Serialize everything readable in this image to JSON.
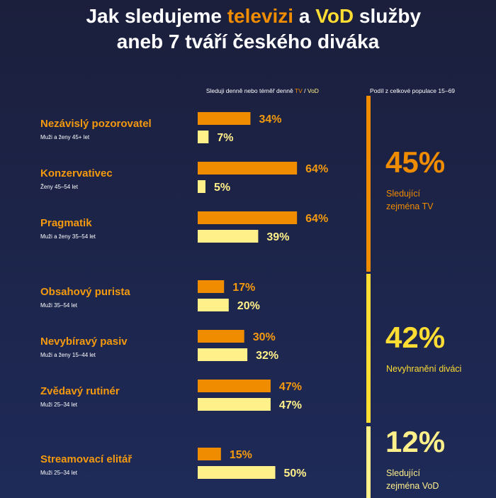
{
  "chart_data": {
    "type": "bar",
    "orientation": "horizontal",
    "title": [
      "Jak sledujeme ",
      "televizi",
      " a ",
      "VoD",
      " služby"
    ],
    "subtitle": "aneb 7 tváří českého diváka",
    "column_header": [
      "Sleduji denně nebo téměř denně ",
      "TV",
      " / ",
      "VoD"
    ],
    "share_header": "Podíl z celkové populace 15–69",
    "categories": [
      "Nezávislý pozorovatel",
      "Konzervativec",
      "Pragmatik",
      "Obsahový purista",
      "Nevybíravý pasiv",
      "Zvědavý rutinér",
      "Streamovací elitář"
    ],
    "category_notes": [
      "Muži a ženy 45+ let",
      "Ženy 45–54 let",
      "Muži a ženy 35–54 let",
      "Muži 35–54 let",
      "Muži a ženy 15–44 let",
      "Muži 25–34 let",
      "Muži 25–34 let"
    ],
    "series": [
      {
        "name": "TV",
        "color": "#f08c00",
        "label_color": "#f59a0e",
        "values": [
          34,
          64,
          64,
          17,
          30,
          47,
          15
        ],
        "value_labels": [
          "34%",
          "64%",
          "64%",
          "17%",
          "30%",
          "47%",
          "15%"
        ]
      },
      {
        "name": "VoD",
        "color": "#fff08a",
        "label_color": "#fff08a",
        "values": [
          7,
          5,
          39,
          20,
          32,
          47,
          50
        ],
        "value_labels": [
          "7%",
          "5%",
          "39%",
          "20%",
          "32%",
          "47%",
          "50%"
        ]
      }
    ],
    "xlim": [
      0,
      100
    ],
    "groups": [
      {
        "share": "45%",
        "label": [
          "Sledující",
          "zejména TV"
        ],
        "color": "#f08c00"
      },
      {
        "share": "42%",
        "label": [
          "Nevyhranění diváci"
        ],
        "color": "#ffdd33"
      },
      {
        "share": "12%",
        "label": [
          "Sledující",
          "zejména VoD"
        ],
        "color": "#fff08a"
      }
    ]
  }
}
